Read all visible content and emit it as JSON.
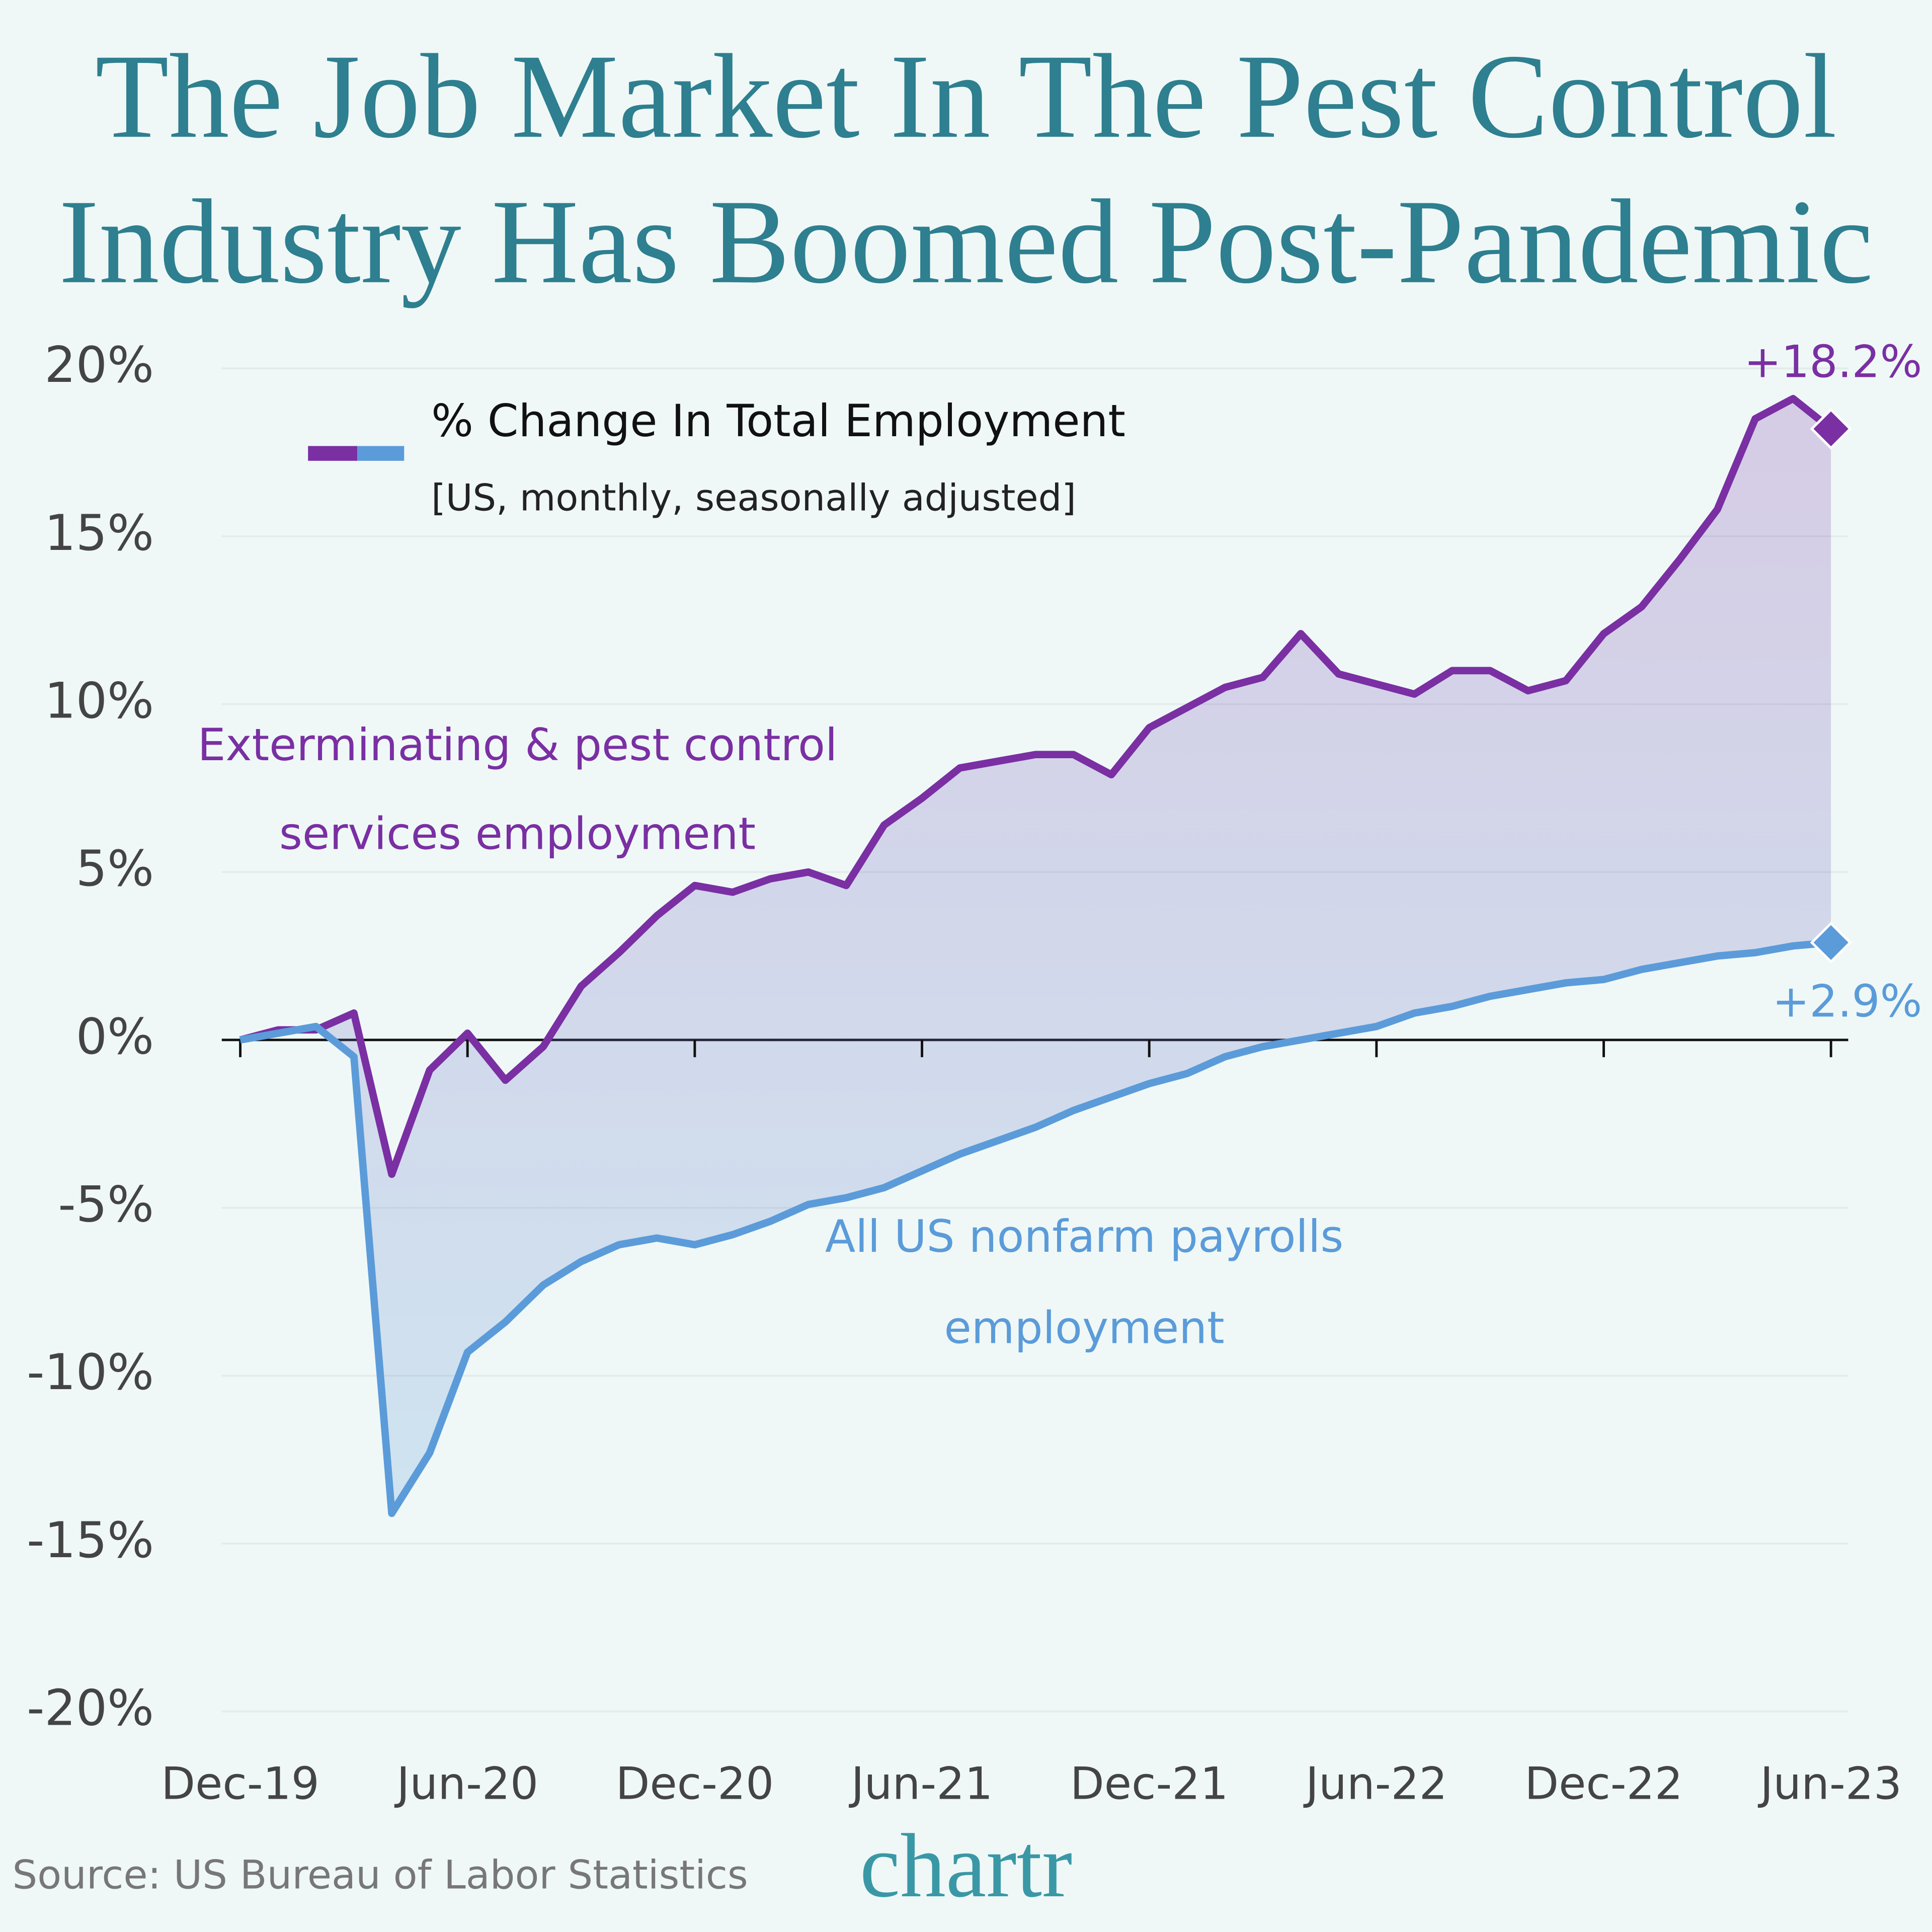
{
  "chart_data": {
    "type": "line",
    "title": "The Job Market In The Pest Control Industry Has Boomed Post-Pandemic",
    "legend_title": "% Change In Total Employment",
    "legend_subtitle": "[US, monthly, seasonally adjusted]",
    "source": "Source: US Bureau of Labor Statistics",
    "logo": "chartr",
    "categories": [
      "Dec-19",
      null,
      null,
      null,
      null,
      null,
      "Jun-20",
      null,
      null,
      null,
      null,
      null,
      "Dec-20",
      null,
      null,
      null,
      null,
      null,
      "Jun-21",
      null,
      null,
      null,
      null,
      null,
      "Dec-21",
      null,
      null,
      null,
      null,
      null,
      "Jun-22",
      null,
      null,
      null,
      null,
      null,
      "Dec-22",
      null,
      null,
      null,
      null,
      null,
      "Jun-23"
    ],
    "series": [
      {
        "name": "Exterminating & pest control services employment",
        "color": "#7a2fa3",
        "values": [
          0,
          0.3,
          0.3,
          0.8,
          -4.0,
          -0.9,
          0.2,
          -1.2,
          -0.2,
          1.6,
          2.6,
          3.7,
          4.6,
          4.4,
          4.8,
          5.0,
          4.6,
          6.4,
          7.2,
          8.1,
          8.3,
          8.5,
          8.5,
          7.9,
          9.3,
          9.9,
          10.5,
          10.8,
          12.1,
          10.9,
          10.6,
          10.3,
          11.0,
          11.0,
          10.4,
          10.7,
          12.1,
          12.9,
          14.3,
          15.8,
          18.5,
          19.1,
          18.2
        ],
        "value_labels": [
          null,
          null,
          null,
          null,
          null,
          null,
          null,
          null,
          null,
          null,
          null,
          null,
          null,
          null,
          null,
          null,
          null,
          null,
          null,
          null,
          null,
          null,
          null,
          null,
          null,
          null,
          null,
          null,
          null,
          null,
          null,
          null,
          null,
          null,
          null,
          null,
          null,
          null,
          null,
          null,
          null,
          null,
          "+18.2%"
        ]
      },
      {
        "name": "All US nonfarm payrolls employment",
        "color": "#5b9bd9",
        "values": [
          0,
          0.2,
          0.4,
          -0.5,
          -14.1,
          -12.3,
          -9.3,
          -8.4,
          -7.3,
          -6.6,
          -6.1,
          -5.9,
          -6.1,
          -5.8,
          -5.4,
          -4.9,
          -4.7,
          -4.4,
          -3.9,
          -3.4,
          -3.0,
          -2.6,
          -2.1,
          -1.7,
          -1.3,
          -1.0,
          -0.5,
          -0.2,
          0.0,
          0.2,
          0.4,
          0.8,
          1.0,
          1.3,
          1.5,
          1.7,
          1.8,
          2.1,
          2.3,
          2.5,
          2.6,
          2.8,
          2.9
        ],
        "value_labels": [
          null,
          null,
          null,
          null,
          null,
          null,
          null,
          null,
          null,
          null,
          null,
          null,
          null,
          null,
          null,
          null,
          null,
          null,
          null,
          null,
          null,
          null,
          null,
          null,
          null,
          null,
          null,
          null,
          null,
          null,
          null,
          null,
          null,
          null,
          null,
          null,
          null,
          null,
          null,
          null,
          null,
          null,
          "+2.9%"
        ]
      }
    ],
    "ylim": [
      -20,
      20
    ],
    "yticks": [
      {
        "value": -20,
        "label": "-20%"
      },
      {
        "value": -15,
        "label": "-15%"
      },
      {
        "value": -10,
        "label": "-10%"
      },
      {
        "value": -5,
        "label": "-5%"
      },
      {
        "value": 0,
        "label": "0%"
      },
      {
        "value": 5,
        "label": "5%"
      },
      {
        "value": 10,
        "label": "10%"
      },
      {
        "value": 15,
        "label": "15%"
      },
      {
        "value": 20,
        "label": "20%"
      }
    ],
    "grid": true
  }
}
